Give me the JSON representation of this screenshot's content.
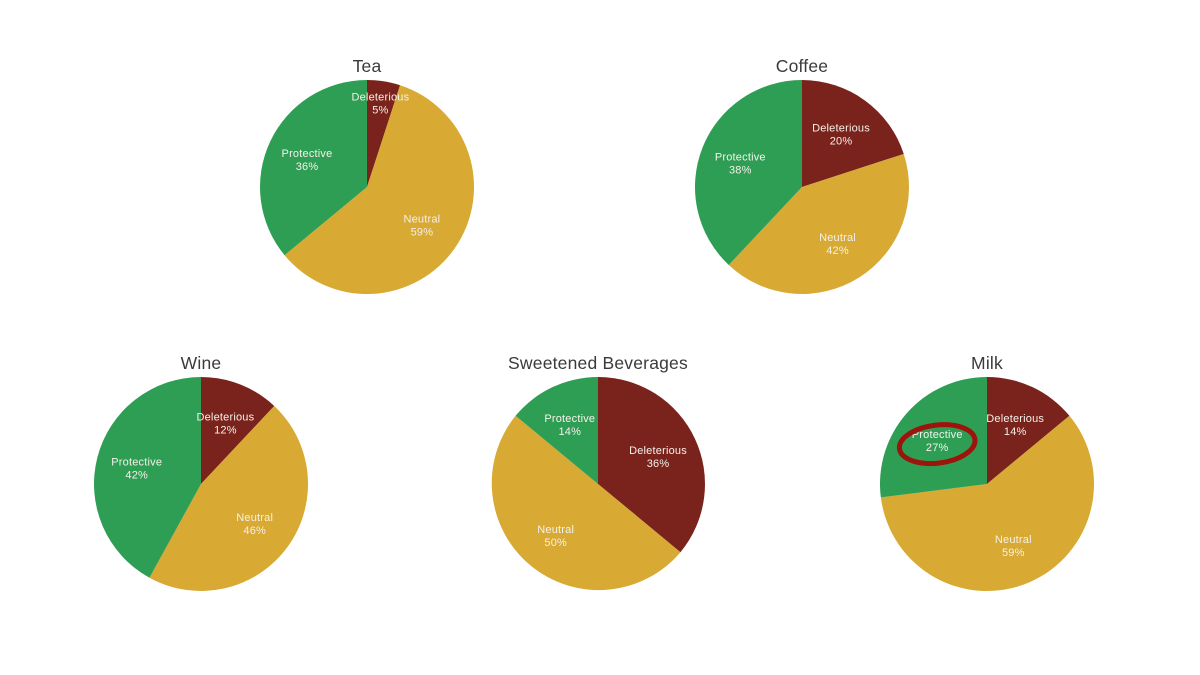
{
  "page": {
    "background": "#ffffff"
  },
  "palette": {
    "protective": "#2f9e55",
    "neutral": "#d8a933",
    "deleterious": "#7a231c",
    "title_text": "#3a3a3a",
    "label_text": "#f4f1e9",
    "annotation_red": "#9c140c"
  },
  "chart_data": [
    {
      "type": "pie",
      "title": "Tea",
      "start_angle_deg": 0,
      "direction": "clockwise",
      "slices": [
        {
          "label": "Deleterious",
          "value": 5,
          "pct_label": "5%",
          "color_key": "deleterious"
        },
        {
          "label": "Neutral",
          "value": 59,
          "pct_label": "59%",
          "color_key": "neutral"
        },
        {
          "label": "Protective",
          "value": 36,
          "pct_label": "36%",
          "color_key": "protective"
        }
      ]
    },
    {
      "type": "pie",
      "title": "Coffee",
      "start_angle_deg": 0,
      "direction": "clockwise",
      "slices": [
        {
          "label": "Deleterious",
          "value": 20,
          "pct_label": "20%",
          "color_key": "deleterious"
        },
        {
          "label": "Neutral",
          "value": 42,
          "pct_label": "42%",
          "color_key": "neutral"
        },
        {
          "label": "Protective",
          "value": 38,
          "pct_label": "38%",
          "color_key": "protective"
        }
      ]
    },
    {
      "type": "pie",
      "title": "Wine",
      "start_angle_deg": 0,
      "direction": "clockwise",
      "slices": [
        {
          "label": "Deleterious",
          "value": 12,
          "pct_label": "12%",
          "color_key": "deleterious"
        },
        {
          "label": "Neutral",
          "value": 46,
          "pct_label": "46%",
          "color_key": "neutral"
        },
        {
          "label": "Protective",
          "value": 42,
          "pct_label": "42%",
          "color_key": "protective"
        }
      ]
    },
    {
      "type": "pie",
      "title": "Sweetened Beverages",
      "start_angle_deg": 0,
      "direction": "clockwise",
      "slices": [
        {
          "label": "Deleterious",
          "value": 36,
          "pct_label": "36%",
          "color_key": "deleterious"
        },
        {
          "label": "Neutral",
          "value": 50,
          "pct_label": "50%",
          "color_key": "neutral"
        },
        {
          "label": "Protective",
          "value": 14,
          "pct_label": "14%",
          "color_key": "protective"
        }
      ]
    },
    {
      "type": "pie",
      "title": "Milk",
      "start_angle_deg": 0,
      "direction": "clockwise",
      "slices": [
        {
          "label": "Deleterious",
          "value": 14,
          "pct_label": "14%",
          "color_key": "deleterious"
        },
        {
          "label": "Neutral",
          "value": 59,
          "pct_label": "59%",
          "color_key": "neutral"
        },
        {
          "label": "Protective",
          "value": 27,
          "pct_label": "27%",
          "color_key": "protective"
        }
      ],
      "annotation": {
        "shape": "ellipse",
        "target_slice": "Protective",
        "color_key": "annotation_red"
      }
    }
  ]
}
